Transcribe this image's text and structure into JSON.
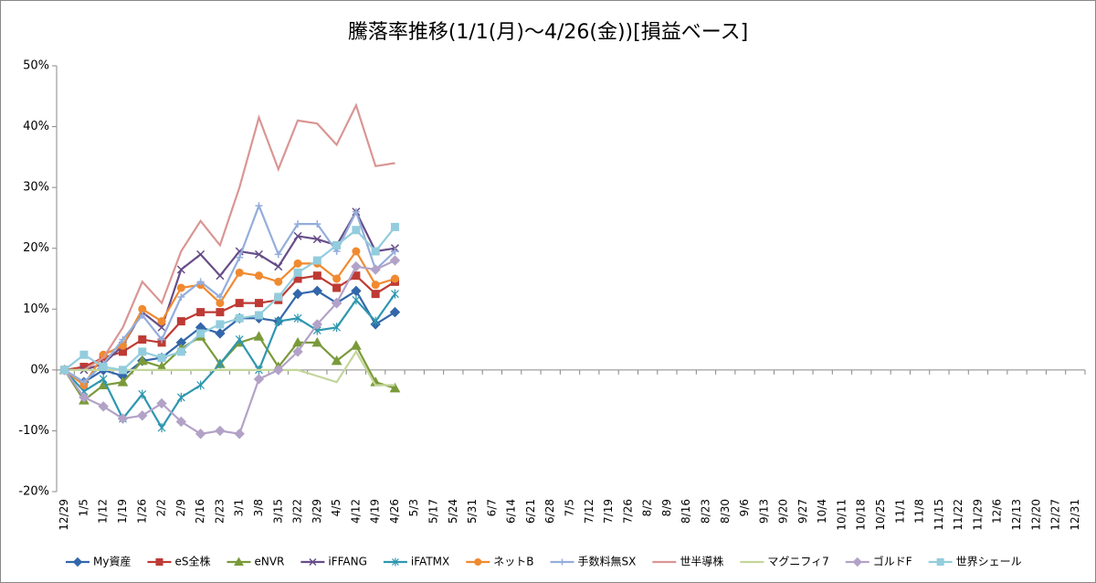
{
  "chart_data": {
    "type": "line",
    "title": "騰落率推移(1/1(月)～4/26(金))[損益ベース]",
    "categories": [
      "12/29",
      "1/5",
      "1/12",
      "1/19",
      "1/26",
      "2/2",
      "2/9",
      "2/16",
      "2/23",
      "3/1",
      "3/8",
      "3/15",
      "3/22",
      "3/29",
      "4/5",
      "4/12",
      "4/19",
      "4/26",
      "5/3",
      "5/17",
      "5/24",
      "5/31",
      "6/7",
      "6/14",
      "6/21",
      "6/28",
      "7/5",
      "7/12",
      "7/19",
      "7/26",
      "8/2",
      "8/9",
      "8/16",
      "8/23",
      "8/30",
      "9/6",
      "9/13",
      "9/20",
      "9/27",
      "10/4",
      "10/11",
      "10/18",
      "10/25",
      "11/1",
      "11/8",
      "11/15",
      "11/22",
      "11/29",
      "12/6",
      "12/13",
      "12/20",
      "12/27",
      "12/31"
    ],
    "ylim": [
      -20,
      50
    ],
    "yticks": [
      {
        "value": -20,
        "label": "-20%"
      },
      {
        "value": -10,
        "label": "-10%"
      },
      {
        "value": 0,
        "label": "0%"
      },
      {
        "value": 10,
        "label": "10%"
      },
      {
        "value": 20,
        "label": "20%"
      },
      {
        "value": 30,
        "label": "30%"
      },
      {
        "value": 40,
        "label": "40%"
      },
      {
        "value": 50,
        "label": "50%"
      }
    ],
    "legend": "bottom",
    "series": [
      {
        "name": "My資産",
        "color": "#3366aa",
        "marker": "diamond",
        "values": [
          0,
          -2,
          0,
          -1,
          1.5,
          2,
          4.5,
          7,
          6,
          8.5,
          8.5,
          8,
          12.5,
          13,
          11,
          13,
          7.5,
          9.5,
          null,
          null,
          null,
          null,
          null,
          null,
          null,
          null,
          null,
          null,
          null,
          null,
          null,
          null,
          null,
          null,
          null,
          null,
          null,
          null,
          null,
          null,
          null,
          null,
          null,
          null,
          null,
          null,
          null,
          null,
          null,
          null,
          null,
          null,
          null
        ]
      },
      {
        "name": "eS全株",
        "color": "#be3a34",
        "marker": "square",
        "values": [
          0,
          0.5,
          2,
          3,
          5,
          4.5,
          8,
          9.5,
          9.5,
          11,
          11,
          11.5,
          15,
          15.5,
          13.5,
          15.5,
          12.5,
          14.5,
          null,
          null,
          null,
          null,
          null,
          null,
          null,
          null,
          null,
          null,
          null,
          null,
          null,
          null,
          null,
          null,
          null,
          null,
          null,
          null,
          null,
          null,
          null,
          null,
          null,
          null,
          null,
          null,
          null,
          null,
          null,
          null,
          null,
          null,
          null
        ]
      },
      {
        "name": "eNVR",
        "color": "#7a9a3a",
        "marker": "triangle",
        "values": [
          0,
          -5,
          -2.5,
          -2,
          1.5,
          0.5,
          3.5,
          5.5,
          1,
          4.5,
          5.5,
          0.5,
          4.5,
          4.5,
          1.5,
          4,
          -2,
          -3,
          null,
          null,
          null,
          null,
          null,
          null,
          null,
          null,
          null,
          null,
          null,
          null,
          null,
          null,
          null,
          null,
          null,
          null,
          null,
          null,
          null,
          null,
          null,
          null,
          null,
          null,
          null,
          null,
          null,
          null,
          null,
          null,
          null,
          null,
          null
        ]
      },
      {
        "name": "iFFANG",
        "color": "#664d88",
        "marker": "x",
        "values": [
          0,
          0,
          1,
          4,
          9.5,
          7,
          16.5,
          19,
          15.5,
          19.5,
          19,
          17,
          22,
          21.5,
          20.5,
          26,
          19.5,
          20,
          null,
          null,
          null,
          null,
          null,
          null,
          null,
          null,
          null,
          null,
          null,
          null,
          null,
          null,
          null,
          null,
          null,
          null,
          null,
          null,
          null,
          null,
          null,
          null,
          null,
          null,
          null,
          null,
          null,
          null,
          null,
          null,
          null,
          null,
          null
        ]
      },
      {
        "name": "iFATMX",
        "color": "#2f97b0",
        "marker": "asterisk",
        "values": [
          0,
          -3.5,
          -1.5,
          -8,
          -4,
          -9.5,
          -4.5,
          -2.5,
          1,
          5,
          0,
          8,
          8.5,
          6.5,
          7,
          11.5,
          8,
          12.5,
          null,
          null,
          null,
          null,
          null,
          null,
          null,
          null,
          null,
          null,
          null,
          null,
          null,
          null,
          null,
          null,
          null,
          null,
          null,
          null,
          null,
          null,
          null,
          null,
          null,
          null,
          null,
          null,
          null,
          null,
          null,
          null,
          null,
          null,
          null
        ]
      },
      {
        "name": "ネットB",
        "color": "#f08a30",
        "marker": "circle",
        "values": [
          0,
          -2.5,
          2.5,
          4,
          10,
          8,
          13.5,
          14,
          11,
          16,
          15.5,
          14.5,
          17.5,
          17.5,
          15,
          19.5,
          14,
          15,
          null,
          null,
          null,
          null,
          null,
          null,
          null,
          null,
          null,
          null,
          null,
          null,
          null,
          null,
          null,
          null,
          null,
          null,
          null,
          null,
          null,
          null,
          null,
          null,
          null,
          null,
          null,
          null,
          null,
          null,
          null,
          null,
          null,
          null,
          null
        ]
      },
      {
        "name": "手数料無SX",
        "color": "#94aedc",
        "marker": "plus",
        "values": [
          0,
          -2,
          1,
          5,
          9,
          5,
          12,
          14.5,
          12,
          18.5,
          27,
          19,
          24,
          24,
          19.5,
          26,
          16.5,
          19.5,
          null,
          null,
          null,
          null,
          null,
          null,
          null,
          null,
          null,
          null,
          null,
          null,
          null,
          null,
          null,
          null,
          null,
          null,
          null,
          null,
          null,
          null,
          null,
          null,
          null,
          null,
          null,
          null,
          null,
          null,
          null,
          null,
          null,
          null,
          null
        ]
      },
      {
        "name": "世半導株",
        "color": "#d99694",
        "marker": "none",
        "values": [
          0,
          0,
          2,
          7,
          14.5,
          11,
          19.5,
          24.5,
          20.5,
          30,
          41.5,
          33,
          41,
          40.5,
          37,
          43.5,
          33.5,
          34,
          null,
          null,
          null,
          null,
          null,
          null,
          null,
          null,
          null,
          null,
          null,
          null,
          null,
          null,
          null,
          null,
          null,
          null,
          null,
          null,
          null,
          null,
          null,
          null,
          null,
          null,
          null,
          null,
          null,
          null,
          null,
          null,
          null,
          null,
          null
        ]
      },
      {
        "name": "マグニフィ7",
        "color": "#c3d69b",
        "marker": "none",
        "values": [
          0,
          0,
          0,
          0,
          0,
          0,
          0,
          0,
          0,
          0,
          0,
          0,
          0,
          -1,
          -2,
          3,
          -2.5,
          -2.5,
          null,
          null,
          null,
          null,
          null,
          null,
          null,
          null,
          null,
          null,
          null,
          null,
          null,
          null,
          null,
          null,
          null,
          null,
          null,
          null,
          null,
          null,
          null,
          null,
          null,
          null,
          null,
          null,
          null,
          null,
          null,
          null,
          null,
          null,
          null
        ]
      },
      {
        "name": "ゴルドF",
        "color": "#b3a2c7",
        "marker": "diamond",
        "values": [
          0,
          -4.5,
          -6,
          -8,
          -7.5,
          -5.5,
          -8.5,
          -10.5,
          -10,
          -10.5,
          -1.5,
          0,
          3,
          7.5,
          11,
          17,
          16.5,
          18,
          null,
          null,
          null,
          null,
          null,
          null,
          null,
          null,
          null,
          null,
          null,
          null,
          null,
          null,
          null,
          null,
          null,
          null,
          null,
          null,
          null,
          null,
          null,
          null,
          null,
          null,
          null,
          null,
          null,
          null,
          null,
          null,
          null,
          null,
          null
        ]
      },
      {
        "name": "世界シェール",
        "color": "#93cddd",
        "marker": "square",
        "values": [
          0,
          2.5,
          0.5,
          0,
          3,
          2,
          3,
          6,
          7.5,
          8.5,
          9,
          12,
          16,
          18,
          20.5,
          23,
          19.5,
          23.5,
          null,
          null,
          null,
          null,
          null,
          null,
          null,
          null,
          null,
          null,
          null,
          null,
          null,
          null,
          null,
          null,
          null,
          null,
          null,
          null,
          null,
          null,
          null,
          null,
          null,
          null,
          null,
          null,
          null,
          null,
          null,
          null,
          null,
          null,
          null
        ]
      }
    ]
  }
}
